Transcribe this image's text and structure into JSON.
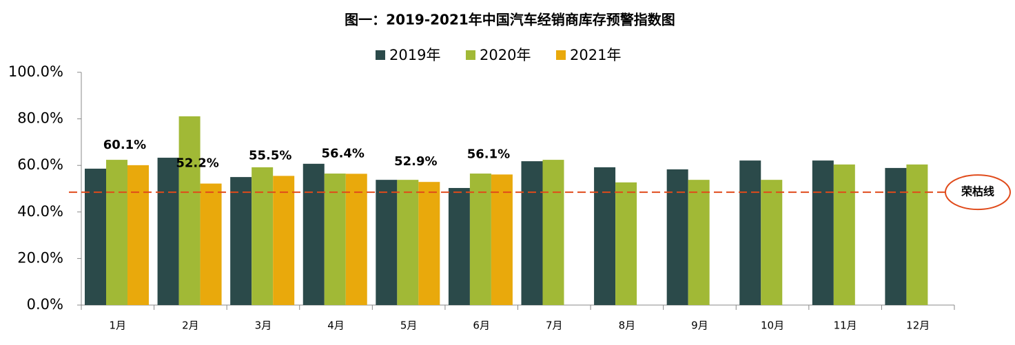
{
  "chart_data": {
    "type": "bar",
    "title": "图一：2019-2021年中国汽车经销商库存预警指数图",
    "categories": [
      "1月",
      "2月",
      "3月",
      "4月",
      "5月",
      "6月",
      "7月",
      "8月",
      "9月",
      "10月",
      "11月",
      "12月"
    ],
    "series": [
      {
        "name": "2019年",
        "color": "#2b4a4a",
        "values": [
          58.6,
          63.3,
          55.0,
          60.7,
          53.8,
          50.3,
          61.8,
          59.2,
          58.3,
          62.1,
          62.1,
          58.9
        ]
      },
      {
        "name": "2020年",
        "color": "#a1b936",
        "values": [
          62.4,
          81.1,
          59.2,
          56.5,
          53.8,
          56.5,
          62.4,
          52.7,
          53.8,
          53.8,
          60.4,
          60.4
        ]
      },
      {
        "name": "2021年",
        "color": "#e9a90c",
        "values": [
          60.1,
          52.2,
          55.5,
          56.4,
          52.9,
          56.1,
          null,
          null,
          null,
          null,
          null,
          null
        ],
        "value_labels": [
          "60.1%",
          "52.2%",
          "55.5%",
          "56.4%",
          "52.9%",
          "56.1%",
          null,
          null,
          null,
          null,
          null,
          null
        ]
      }
    ],
    "ylim": [
      0,
      100
    ],
    "yticks": [
      {
        "value": 0,
        "label": "0.0%"
      },
      {
        "value": 20,
        "label": "20.0%"
      },
      {
        "value": 40,
        "label": "40.0%"
      },
      {
        "value": 60,
        "label": "60.0%"
      },
      {
        "value": 80,
        "label": "80.0%"
      },
      {
        "value": 100,
        "label": "100.0%"
      }
    ],
    "threshold": {
      "value": 48.5,
      "label": "荣枯线",
      "color": "#e04a1a"
    },
    "grid": false,
    "legend": "top"
  }
}
